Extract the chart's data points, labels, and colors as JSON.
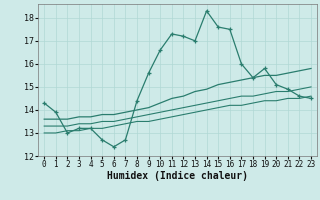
{
  "xlabel": "Humidex (Indice chaleur)",
  "bg_color": "#ceeae8",
  "grid_color": "#b0d8d5",
  "line_color": "#2a7d6e",
  "xlim": [
    -0.5,
    23.5
  ],
  "ylim": [
    12,
    18.6
  ],
  "yticks": [
    12,
    13,
    14,
    15,
    16,
    17,
    18
  ],
  "xticks": [
    0,
    1,
    2,
    3,
    4,
    5,
    6,
    7,
    8,
    9,
    10,
    11,
    12,
    13,
    14,
    15,
    16,
    17,
    18,
    19,
    20,
    21,
    22,
    23
  ],
  "series1_x": [
    0,
    1,
    2,
    3,
    4,
    5,
    6,
    7,
    8,
    9,
    10,
    11,
    12,
    13,
    14,
    15,
    16,
    17,
    18,
    19,
    20,
    21,
    22,
    23
  ],
  "series1_y": [
    14.3,
    13.9,
    13.0,
    13.2,
    13.2,
    12.7,
    12.4,
    12.7,
    14.4,
    15.6,
    16.6,
    17.3,
    17.2,
    17.0,
    18.3,
    17.6,
    17.5,
    16.0,
    15.4,
    15.8,
    15.1,
    14.9,
    14.6,
    14.5
  ],
  "series2_x": [
    0,
    1,
    2,
    3,
    4,
    5,
    6,
    7,
    8,
    9,
    10,
    11,
    12,
    13,
    14,
    15,
    16,
    17,
    18,
    19,
    20,
    21,
    22,
    23
  ],
  "series2_y": [
    13.6,
    13.6,
    13.6,
    13.7,
    13.7,
    13.8,
    13.8,
    13.9,
    14.0,
    14.1,
    14.3,
    14.5,
    14.6,
    14.8,
    14.9,
    15.1,
    15.2,
    15.3,
    15.4,
    15.5,
    15.5,
    15.6,
    15.7,
    15.8
  ],
  "series3_x": [
    0,
    1,
    2,
    3,
    4,
    5,
    6,
    7,
    8,
    9,
    10,
    11,
    12,
    13,
    14,
    15,
    16,
    17,
    18,
    19,
    20,
    21,
    22,
    23
  ],
  "series3_y": [
    13.3,
    13.3,
    13.3,
    13.4,
    13.4,
    13.5,
    13.5,
    13.6,
    13.7,
    13.8,
    13.9,
    14.0,
    14.1,
    14.2,
    14.3,
    14.4,
    14.5,
    14.6,
    14.6,
    14.7,
    14.8,
    14.8,
    14.9,
    15.0
  ],
  "series4_x": [
    0,
    1,
    2,
    3,
    4,
    5,
    6,
    7,
    8,
    9,
    10,
    11,
    12,
    13,
    14,
    15,
    16,
    17,
    18,
    19,
    20,
    21,
    22,
    23
  ],
  "series4_y": [
    13.0,
    13.0,
    13.1,
    13.1,
    13.2,
    13.2,
    13.3,
    13.4,
    13.5,
    13.5,
    13.6,
    13.7,
    13.8,
    13.9,
    14.0,
    14.1,
    14.2,
    14.2,
    14.3,
    14.4,
    14.4,
    14.5,
    14.5,
    14.6
  ]
}
